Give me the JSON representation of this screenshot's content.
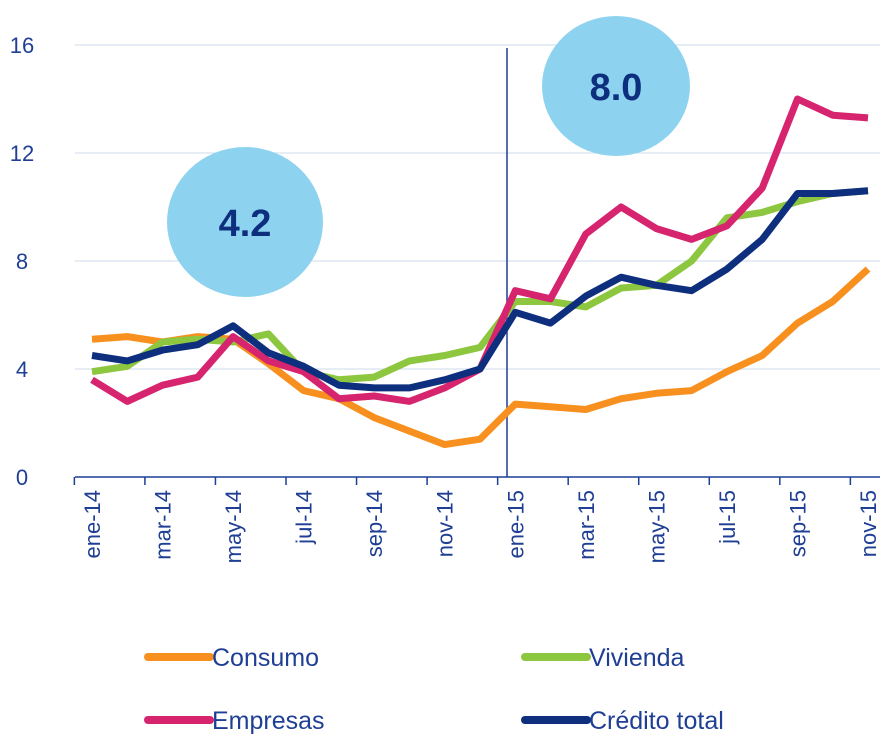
{
  "chart_data": {
    "type": "line",
    "categories": [
      "ene-14",
      null,
      "mar-14",
      null,
      "may-14",
      null,
      "jul-14",
      null,
      "sep-14",
      null,
      "nov-14",
      null,
      "ene-15",
      null,
      "mar-15",
      null,
      "may-15",
      null,
      "jul-15",
      null,
      "sep-15",
      null,
      "nov-15"
    ],
    "series": [
      {
        "name": "Consumo",
        "color": "#f7901e",
        "values": [
          5.1,
          5.2,
          5.0,
          5.2,
          5.1,
          4.2,
          3.2,
          2.9,
          2.2,
          1.7,
          1.2,
          1.4,
          2.7,
          2.6,
          2.5,
          2.9,
          3.1,
          3.2,
          3.9,
          4.5,
          5.7,
          6.5,
          7.7
        ]
      },
      {
        "name": "Vivienda",
        "color": "#8dc63f",
        "values": [
          3.9,
          4.1,
          5.0,
          5.1,
          5.0,
          5.3,
          3.9,
          3.6,
          3.7,
          4.3,
          4.5,
          4.8,
          6.5,
          6.5,
          6.3,
          7.0,
          7.1,
          8.0,
          9.6,
          9.8,
          10.2,
          10.5,
          10.6
        ]
      },
      {
        "name": "Empresas",
        "color": "#d6246e",
        "values": [
          3.6,
          2.8,
          3.4,
          3.7,
          5.2,
          4.3,
          3.9,
          2.9,
          3.0,
          2.8,
          3.3,
          4.0,
          6.9,
          6.6,
          9.0,
          10.0,
          9.2,
          8.8,
          9.3,
          10.7,
          14.0,
          13.4,
          13.3
        ]
      },
      {
        "name": "Crédito total",
        "color": "#0d2f7e",
        "values": [
          4.5,
          4.3,
          4.7,
          4.9,
          5.6,
          4.6,
          4.1,
          3.4,
          3.3,
          3.3,
          3.6,
          4.0,
          6.1,
          5.7,
          6.7,
          7.4,
          7.1,
          6.9,
          7.7,
          8.8,
          10.5,
          10.5,
          10.6
        ]
      }
    ],
    "annotations": [
      "4.2",
      "8.0"
    ],
    "ylim": [
      0,
      16
    ],
    "yticks": [
      0,
      4,
      8,
      12,
      16
    ],
    "grid": true
  }
}
